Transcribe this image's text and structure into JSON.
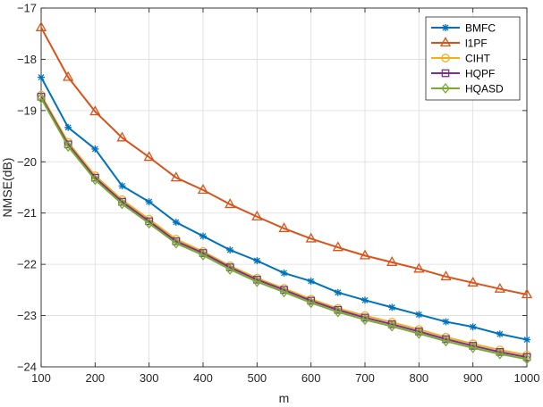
{
  "chart_data": {
    "type": "line",
    "title": "",
    "xlabel": "m",
    "ylabel": "NMSE(dB)",
    "xlim": [
      100,
      1000
    ],
    "ylim": [
      -24,
      -17
    ],
    "xticks": [
      100,
      200,
      300,
      400,
      500,
      600,
      700,
      800,
      900,
      1000
    ],
    "yticks": [
      -17,
      -18,
      -19,
      -20,
      -21,
      -22,
      -23,
      -24
    ],
    "grid": true,
    "legend_position": "top-right",
    "x": [
      100,
      150,
      200,
      250,
      300,
      350,
      400,
      450,
      500,
      550,
      600,
      650,
      700,
      750,
      800,
      850,
      900,
      950,
      1000
    ],
    "series": [
      {
        "name": "BMFC",
        "color": "#0072BD",
        "marker": "asterisk",
        "values": [
          -18.35,
          -19.33,
          -19.75,
          -20.47,
          -20.78,
          -21.18,
          -21.45,
          -21.72,
          -21.93,
          -22.17,
          -22.33,
          -22.55,
          -22.7,
          -22.84,
          -22.98,
          -23.12,
          -23.22,
          -23.36,
          -23.47
        ]
      },
      {
        "name": "l1PF",
        "color": "#D95319",
        "marker": "triangle",
        "values": [
          -17.38,
          -18.35,
          -19.02,
          -19.53,
          -19.91,
          -20.31,
          -20.55,
          -20.83,
          -21.07,
          -21.3,
          -21.5,
          -21.67,
          -21.83,
          -21.96,
          -22.09,
          -22.24,
          -22.36,
          -22.48,
          -22.59
        ]
      },
      {
        "name": "CIHT",
        "color": "#EDB120",
        "marker": "circle",
        "values": [
          -18.7,
          -19.62,
          -20.27,
          -20.74,
          -21.12,
          -21.51,
          -21.75,
          -22.03,
          -22.27,
          -22.47,
          -22.68,
          -22.86,
          -23.0,
          -23.13,
          -23.27,
          -23.42,
          -23.55,
          -23.67,
          -23.77
        ]
      },
      {
        "name": "HQPF",
        "color": "#7E2F8E",
        "marker": "square",
        "values": [
          -18.73,
          -19.66,
          -20.31,
          -20.78,
          -21.16,
          -21.55,
          -21.78,
          -22.06,
          -22.3,
          -22.5,
          -22.71,
          -22.89,
          -23.04,
          -23.17,
          -23.31,
          -23.46,
          -23.59,
          -23.71,
          -23.81
        ]
      },
      {
        "name": "HQASD",
        "color": "#77AC30",
        "marker": "diamond",
        "values": [
          -18.76,
          -19.7,
          -20.35,
          -20.82,
          -21.2,
          -21.59,
          -21.82,
          -22.1,
          -22.34,
          -22.54,
          -22.75,
          -22.93,
          -23.08,
          -23.21,
          -23.35,
          -23.5,
          -23.63,
          -23.75,
          -23.85
        ]
      }
    ]
  }
}
